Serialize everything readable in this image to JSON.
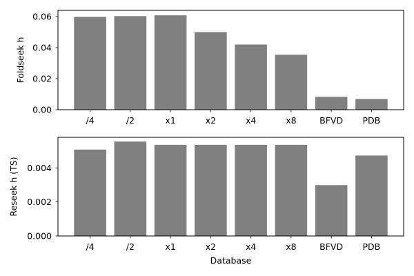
{
  "chart_data": [
    {
      "type": "bar",
      "categories": [
        "/4",
        "/2",
        "x1",
        "x2",
        "x4",
        "x8",
        "BFVD",
        "PDB"
      ],
      "values": [
        0.0598,
        0.0603,
        0.0608,
        0.05,
        0.042,
        0.0354,
        0.0083,
        0.0069
      ],
      "xlabel": "",
      "ylabel": "Foldseek h",
      "ylim": [
        0,
        0.064
      ],
      "yticks": [
        0.0,
        0.02,
        0.04,
        0.06
      ],
      "ytick_labels": [
        "0.00",
        "0.02",
        "0.04",
        "0.06"
      ],
      "bar_color": "#808080",
      "grid": false
    },
    {
      "type": "bar",
      "categories": [
        "/4",
        "/2",
        "x1",
        "x2",
        "x4",
        "x8",
        "BFVD",
        "PDB"
      ],
      "values": [
        0.00508,
        0.00555,
        0.00536,
        0.00536,
        0.00536,
        0.00536,
        0.00299,
        0.00473
      ],
      "xlabel": "Database",
      "ylabel": "Reseek h (TS)",
      "ylim": [
        0,
        0.0058
      ],
      "yticks": [
        0.0,
        0.002,
        0.004
      ],
      "ytick_labels": [
        "0.000",
        "0.002",
        "0.004"
      ],
      "bar_color": "#808080",
      "grid": false
    }
  ]
}
